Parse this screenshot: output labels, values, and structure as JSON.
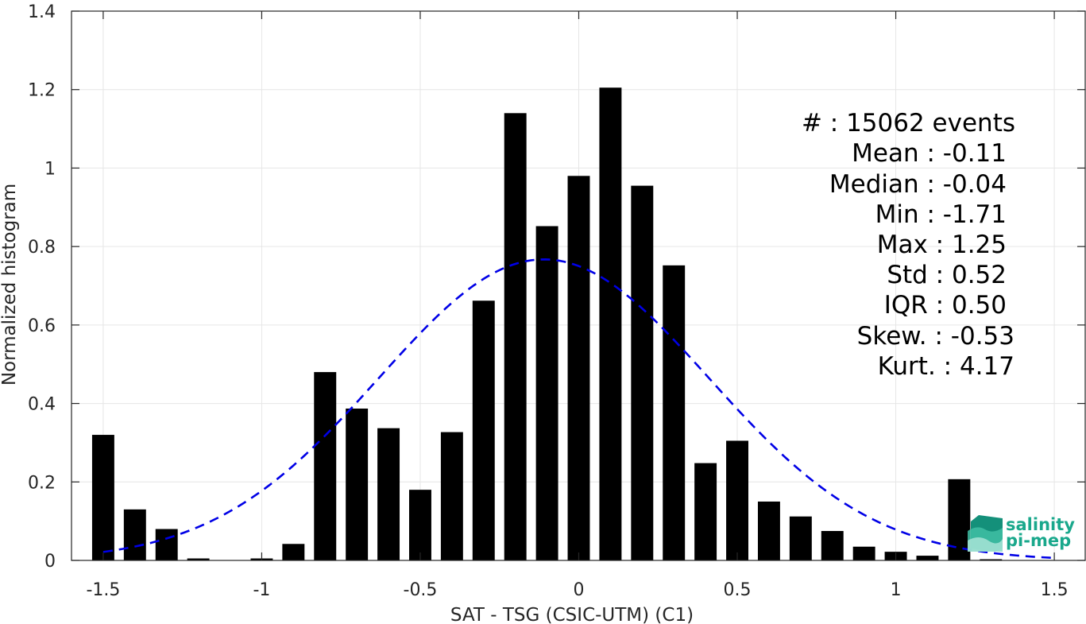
{
  "chart_data": {
    "type": "bar",
    "xlabel": "SAT - TSG (CSIC-UTM) (C1)",
    "ylabel": "Normalized histogram",
    "xlim": [
      -1.6,
      1.6
    ],
    "ylim": [
      0,
      1.4
    ],
    "xticks": [
      -1.5,
      -1,
      -0.5,
      0,
      0.5,
      1,
      1.5
    ],
    "xtick_labels": [
      "-1.5",
      "-1",
      "-0.5",
      "0",
      "0.5",
      "1",
      "1.5"
    ],
    "yticks": [
      0,
      0.2,
      0.4,
      0.6,
      0.8,
      1,
      1.2,
      1.4
    ],
    "ytick_labels": [
      "0",
      "0.2",
      "0.4",
      "0.6",
      "0.8",
      "1",
      "1.2",
      "1.4"
    ],
    "grid": true,
    "bar_width": 0.07,
    "bar_color": "#000000",
    "series": [
      {
        "x": [
          -1.5,
          -1.4,
          -1.3,
          -1.2,
          -1.1,
          -1.0,
          -0.9,
          -0.8,
          -0.7,
          -0.6,
          -0.5,
          -0.4,
          -0.3,
          -0.2,
          -0.1,
          0.0,
          0.1,
          0.2,
          0.3,
          0.4,
          0.5,
          0.6,
          0.7,
          0.8,
          0.9,
          1.0,
          1.1,
          1.2,
          1.3
        ],
        "values": [
          0.32,
          0.13,
          0.08,
          0.005,
          0.0,
          0.005,
          0.042,
          0.48,
          0.387,
          0.337,
          0.18,
          0.327,
          0.662,
          1.14,
          0.852,
          0.98,
          1.205,
          0.955,
          0.752,
          0.248,
          0.305,
          0.15,
          0.112,
          0.075,
          0.035,
          0.022,
          0.012,
          0.207,
          0.003
        ]
      }
    ],
    "normal_fit": {
      "mean": -0.11,
      "std": 0.52,
      "x_range": [
        -1.5,
        1.5
      ],
      "color": "#0000e6",
      "style": "dashed"
    },
    "annotation": [
      "#  : 15062 events",
      "Mean : -0.11",
      "Median : -0.04",
      "Min : -1.71",
      "Max : 1.25",
      "Std : 0.52",
      "IQR : 0.50",
      "Skew. : -0.53",
      "Kurt. : 4.17"
    ]
  },
  "logo": {
    "line1": "salinity",
    "line2": "pi-mep",
    "color": "#1aa88c"
  }
}
